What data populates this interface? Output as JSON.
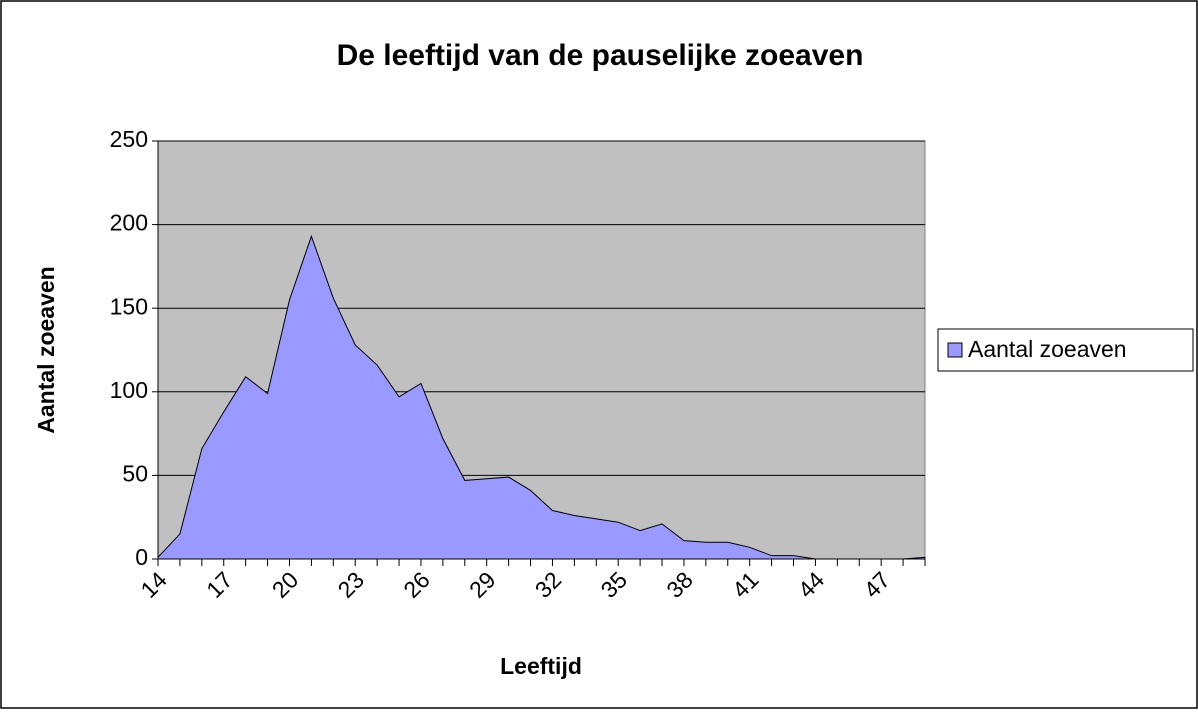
{
  "chart_data": {
    "type": "area",
    "title": "De leeftijd van de pauselijke zoeaven",
    "x_label": "Leeftijd",
    "y_label": "Aantal zoeaven",
    "categories": [
      "14",
      null,
      null,
      "17",
      null,
      null,
      "20",
      null,
      null,
      "23",
      null,
      null,
      "26",
      null,
      null,
      "29",
      null,
      null,
      "32",
      null,
      null,
      "35",
      null,
      null,
      "38",
      null,
      null,
      "41",
      null,
      null,
      "44",
      null,
      null,
      "47",
      null,
      null
    ],
    "series": [
      {
        "name": "Aantal zoeaven",
        "color": "#9999ff",
        "values": [
          1,
          15,
          66,
          88,
          109,
          99,
          155,
          193,
          156,
          128,
          116,
          97,
          105,
          72,
          47,
          48,
          49,
          41,
          29,
          26,
          24,
          22,
          17,
          21,
          11,
          10,
          10,
          7,
          2,
          2,
          0,
          0,
          0,
          0,
          0,
          1
        ]
      }
    ],
    "ylim": [
      0,
      250
    ],
    "yticks": [
      0,
      50,
      100,
      150,
      200,
      250
    ],
    "grid": true,
    "legend": "right",
    "plot_background": "#c0c0c0"
  }
}
